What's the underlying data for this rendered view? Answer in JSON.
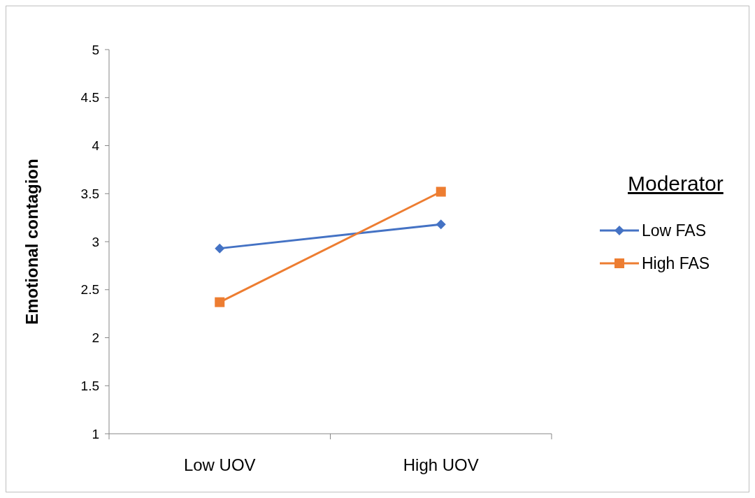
{
  "chart_data": {
    "type": "line",
    "ylabel": "Emotional contagion",
    "legend_title": "Moderator",
    "categories": [
      "Low UOV",
      "High UOV"
    ],
    "series": [
      {
        "name": "Low FAS",
        "color": "#4472c4",
        "values": [
          2.93,
          3.18
        ],
        "marker": "diamond"
      },
      {
        "name": "High FAS",
        "color": "#ed7d31",
        "values": [
          2.37,
          3.52
        ],
        "marker": "square"
      }
    ],
    "ylim": [
      1,
      5
    ],
    "yticks": [
      1,
      1.5,
      2,
      2.5,
      3,
      3.5,
      4,
      4.5,
      5
    ],
    "grid": false,
    "legend": "right",
    "line_style": "solid"
  }
}
